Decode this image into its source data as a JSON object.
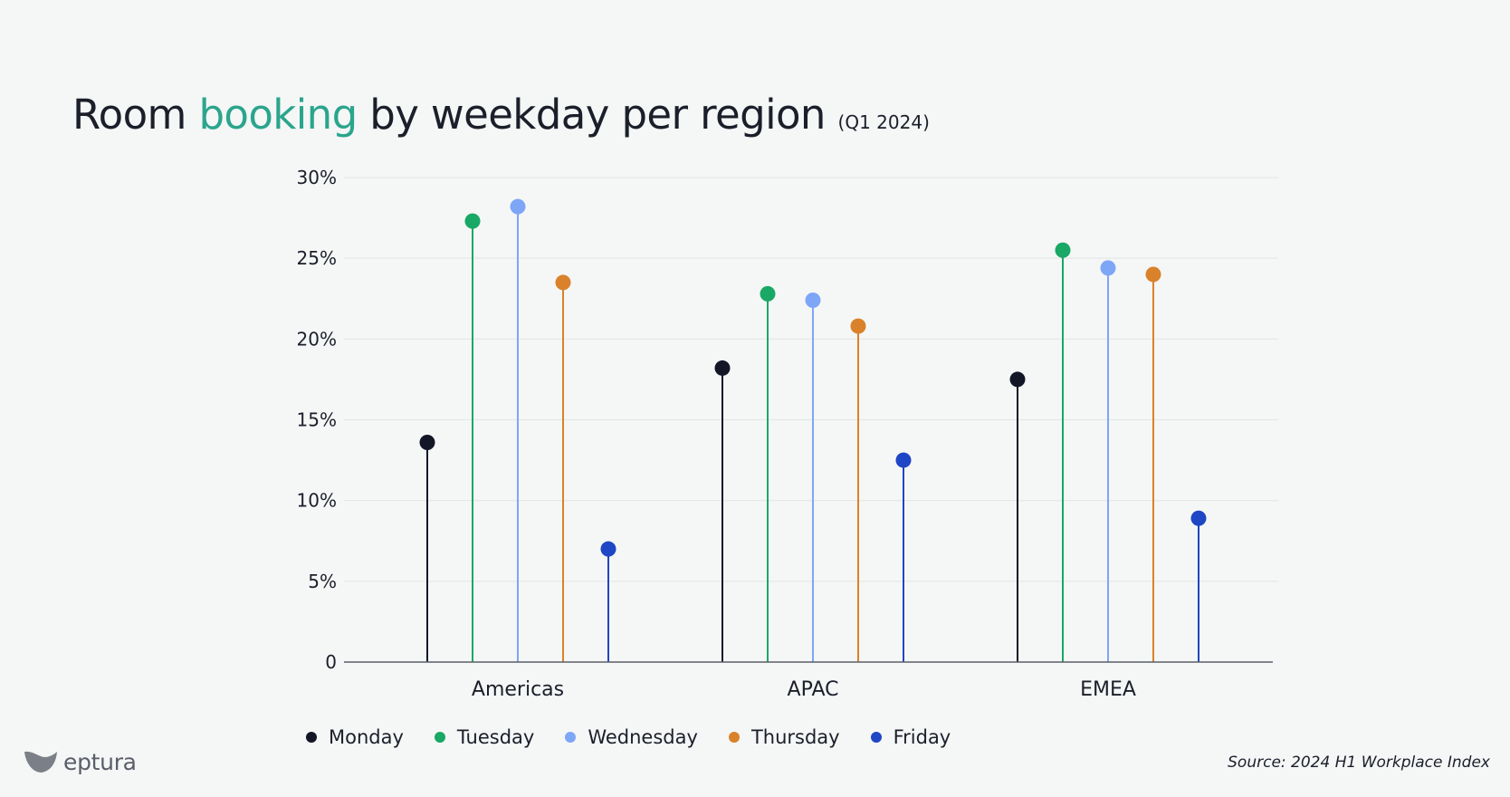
{
  "title": {
    "part1": "Room ",
    "accent": "booking",
    "part2": " by weekday per region",
    "subtitle": "(Q1 2024)"
  },
  "colors": {
    "accent": "#2aa58c",
    "axis": "#5d6068",
    "grid": "#e3e6e6",
    "background": "#f5f6f6"
  },
  "chart_data": {
    "type": "lollipop",
    "categories": [
      "Americas",
      "APAC",
      "EMEA"
    ],
    "y_ticks": [
      "0",
      "5%",
      "10%",
      "15%",
      "20%",
      "25%",
      "30%"
    ],
    "ylim": [
      0,
      30
    ],
    "grid": true,
    "legend_position": "bottom-left",
    "series": [
      {
        "name": "Monday",
        "color": "#121627",
        "values": [
          13.6,
          18.2,
          17.5
        ]
      },
      {
        "name": "Tuesday",
        "color": "#19a865",
        "values": [
          27.3,
          22.8,
          25.5
        ]
      },
      {
        "name": "Wednesday",
        "color": "#7ea6f7",
        "values": [
          28.2,
          22.4,
          24.4
        ]
      },
      {
        "name": "Thursday",
        "color": "#d9822b",
        "values": [
          23.5,
          20.8,
          24.0
        ]
      },
      {
        "name": "Friday",
        "color": "#1f46c4",
        "values": [
          7.0,
          12.5,
          8.9
        ]
      }
    ]
  },
  "footer": {
    "logo_text": "eptura",
    "source": "Source: 2024 H1 Workplace Index"
  }
}
